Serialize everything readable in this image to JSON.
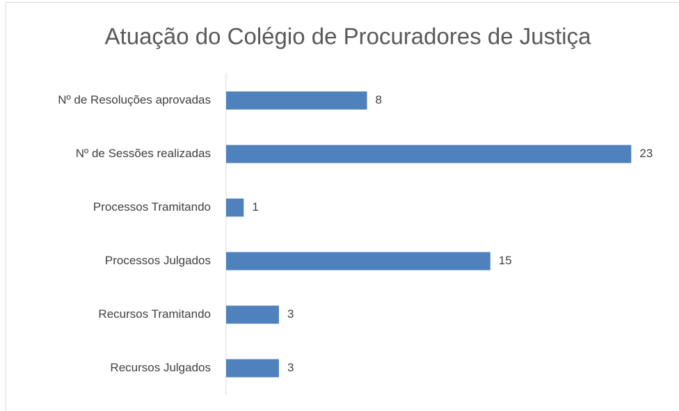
{
  "chart_data": {
    "type": "barh",
    "title": "Atuação do Colégio de Procuradores de Justiça",
    "categories": [
      "Nº de Resoluções aprovadas",
      "Nº de Sessões realizadas",
      "Processos Tramitando",
      "Processos Julgados",
      "Recursos Tramitando",
      "Recursos Julgados"
    ],
    "values": [
      8,
      23,
      1,
      15,
      3,
      3
    ],
    "color": "#4f81bd",
    "xlim": [
      0,
      25
    ]
  }
}
